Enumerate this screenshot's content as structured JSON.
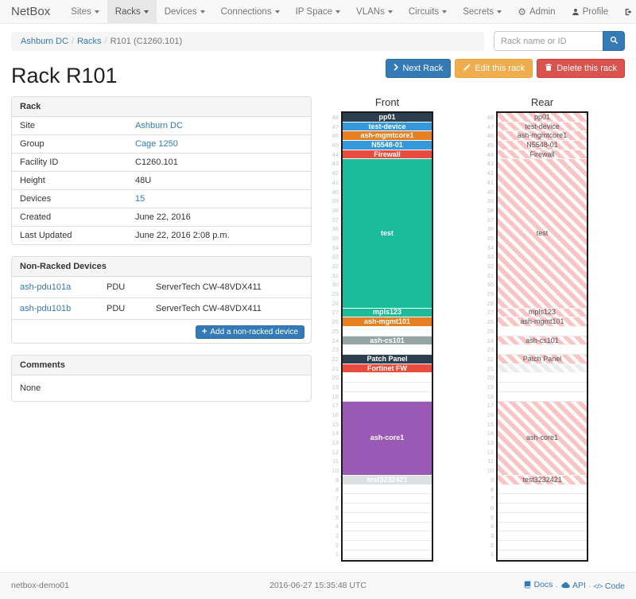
{
  "navbar": {
    "brand": "NetBox",
    "items": [
      {
        "label": "Sites",
        "active": false
      },
      {
        "label": "Racks",
        "active": true
      },
      {
        "label": "Devices",
        "active": false
      },
      {
        "label": "Connections",
        "active": false
      },
      {
        "label": "IP Space",
        "active": false
      },
      {
        "label": "VLANs",
        "active": false
      },
      {
        "label": "Circuits",
        "active": false
      },
      {
        "label": "Secrets",
        "active": false
      }
    ],
    "right": [
      {
        "label": "Admin",
        "icon": "gear-icon"
      },
      {
        "label": "Profile",
        "icon": "user-icon"
      },
      {
        "label": "Log out",
        "icon": "logout-icon"
      }
    ]
  },
  "breadcrumb": {
    "links": [
      "Ashburn DC",
      "Racks"
    ],
    "current": "R101 (C1260.101)"
  },
  "search": {
    "placeholder": "Rack name or ID"
  },
  "page": {
    "title": "Rack R101"
  },
  "actions": {
    "next": "Next Rack",
    "edit": "Edit this rack",
    "delete": "Delete this rack"
  },
  "rack_info": {
    "title": "Rack",
    "rows": [
      {
        "label": "Site",
        "value": "Ashburn DC",
        "link": true
      },
      {
        "label": "Group",
        "value": "Cage 1250",
        "link": true
      },
      {
        "label": "Facility ID",
        "value": "C1260.101",
        "link": false
      },
      {
        "label": "Height",
        "value": "48U",
        "link": false
      },
      {
        "label": "Devices",
        "value": "15",
        "link": true
      },
      {
        "label": "Created",
        "value": "June 22, 2016",
        "link": false
      },
      {
        "label": "Last Updated",
        "value": "June 22, 2016 2:08 p.m.",
        "link": false
      }
    ]
  },
  "non_racked": {
    "title": "Non-Racked Devices",
    "devices": [
      {
        "name": "ash-pdu101a",
        "type": "PDU",
        "model": "ServerTech CW-48VDX411"
      },
      {
        "name": "ash-pdu101b",
        "type": "PDU",
        "model": "ServerTech CW-48VDX411"
      }
    ],
    "add_label": "Add a non-racked device"
  },
  "comments": {
    "title": "Comments",
    "body": "None"
  },
  "elevation": {
    "front_title": "Front",
    "rear_title": "Rear",
    "top_unit": 48,
    "front_slots": [
      {
        "size": 1,
        "label": "pp01",
        "role": "navy"
      },
      {
        "size": 1,
        "label": "test-device",
        "role": "blue"
      },
      {
        "size": 1,
        "label": "ash-mgmtcore1",
        "role": "orange"
      },
      {
        "size": 1,
        "label": "N5548-01",
        "role": "blue"
      },
      {
        "size": 1,
        "label": "Firewall",
        "role": "red"
      },
      {
        "size": 16,
        "label": "test",
        "role": "teal"
      },
      {
        "size": 1,
        "label": "mpls123",
        "role": "teal"
      },
      {
        "size": 1,
        "label": "ash-mgmt101",
        "role": "orange"
      },
      {
        "size": 1,
        "label": "",
        "role": "empty"
      },
      {
        "size": 1,
        "label": "ash-cs101",
        "role": "gray"
      },
      {
        "size": 1,
        "label": "",
        "role": "empty"
      },
      {
        "size": 1,
        "label": "Patch Panel",
        "role": "navy"
      },
      {
        "size": 1,
        "label": "Fortinet FW",
        "role": "red"
      },
      {
        "size": 3,
        "label": "",
        "role": "empty"
      },
      {
        "size": 8,
        "label": "ash-core1",
        "role": "purple"
      },
      {
        "size": 1,
        "label": "test3232421",
        "role": "lightgray"
      },
      {
        "size": 8,
        "label": "",
        "role": "empty"
      }
    ],
    "rear_slots": [
      {
        "size": 1,
        "label": "pp01",
        "style": "pink"
      },
      {
        "size": 1,
        "label": "test-device",
        "style": "pink"
      },
      {
        "size": 1,
        "label": "ash-mgmtcore1",
        "style": "pink"
      },
      {
        "size": 1,
        "label": "N5548-01",
        "style": "pink"
      },
      {
        "size": 1,
        "label": "Firewall",
        "style": "pink"
      },
      {
        "size": 16,
        "label": "test",
        "style": "pink"
      },
      {
        "size": 1,
        "label": "mpls123",
        "style": "pink"
      },
      {
        "size": 1,
        "label": "ash-mgmt101",
        "style": "pink"
      },
      {
        "size": 1,
        "label": "",
        "style": "empty"
      },
      {
        "size": 1,
        "label": "ash-cs101",
        "style": "pink"
      },
      {
        "size": 1,
        "label": "",
        "style": "empty"
      },
      {
        "size": 1,
        "label": "Patch Panel",
        "style": "pink"
      },
      {
        "size": 1,
        "label": "",
        "style": "gray"
      },
      {
        "size": 3,
        "label": "",
        "style": "empty"
      },
      {
        "size": 8,
        "label": "ash-core1",
        "style": "pink"
      },
      {
        "size": 1,
        "label": "test3232421",
        "style": "pink"
      },
      {
        "size": 8,
        "label": "",
        "style": "empty"
      }
    ]
  },
  "colors": {
    "navy": "#2c3e50",
    "blue": "#3498db",
    "orange": "#e67e22",
    "red": "#e74c3c",
    "teal": "#1abc9c",
    "gray": "#95a5a6",
    "purple": "#9b59b6",
    "lightgray": "#dce0e2",
    "link": "#337ab7",
    "button_next": "#337ab7",
    "button_edit": "#f0ad4e",
    "button_delete": "#d9534f"
  },
  "footer": {
    "host": "netbox-demo01",
    "timestamp": "2016-06-27 15:35:48 UTC",
    "links": [
      {
        "label": "Docs",
        "icon": "book-icon"
      },
      {
        "label": "API",
        "icon": "cloud-icon"
      },
      {
        "label": "Code",
        "icon": "code-icon"
      }
    ]
  }
}
